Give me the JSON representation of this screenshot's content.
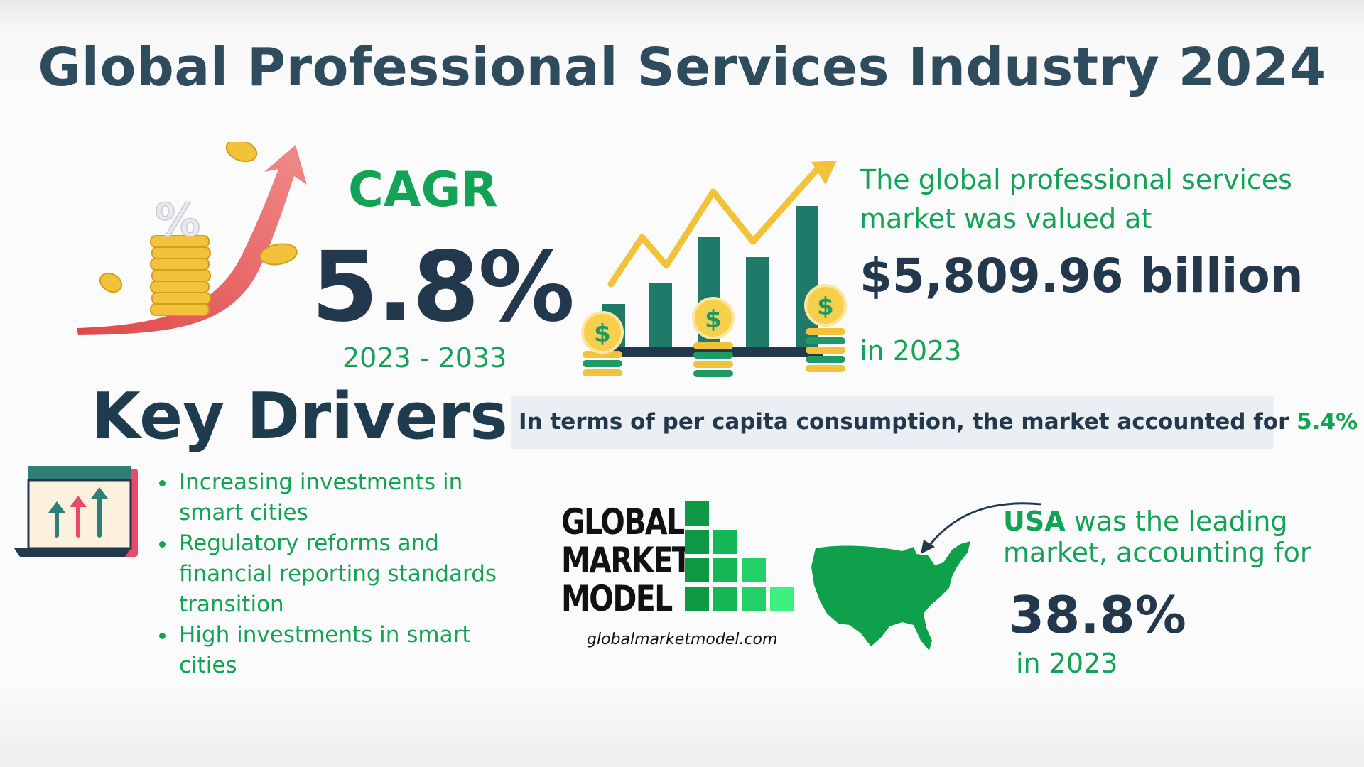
{
  "title": "Global Professional Services Industry 2024",
  "cagr": {
    "label": "CAGR",
    "value": "5.8%",
    "period": "2023 - 2033"
  },
  "market_value": {
    "intro": "The global professional services market was valued at",
    "value": "$5,809.96 billion",
    "year": "in 2023"
  },
  "per_capita": {
    "text": "In terms of per capita consumption, the market accounted for",
    "value": "5.4%"
  },
  "key_drivers": {
    "title": "Key Drivers",
    "items": [
      "Increasing investments in smart cities",
      "Regulatory reforms and financial reporting standards transition",
      "High investments in smart cities"
    ]
  },
  "brand": {
    "line1": "GLOBAL",
    "line2": "MARKET",
    "line3": "MODEL",
    "url": "globalmarketmodel.com"
  },
  "usa": {
    "country": "USA",
    "text1": "was the leading",
    "text2": "market, accounting for",
    "value": "38.8%",
    "year": "in 2023"
  },
  "colors": {
    "accent_green": "#12a356",
    "navy": "#23384d",
    "teal_bar": "#1f7a6a",
    "gold": "#f5c542",
    "arrow_red": "#e85b5b"
  },
  "icons": [
    "percent-coins-arrow-icon",
    "growth-bar-chart-icon",
    "trend-board-icon",
    "usa-map-icon",
    "curved-pointer-arrow-icon",
    "brand-logo-blocks"
  ]
}
